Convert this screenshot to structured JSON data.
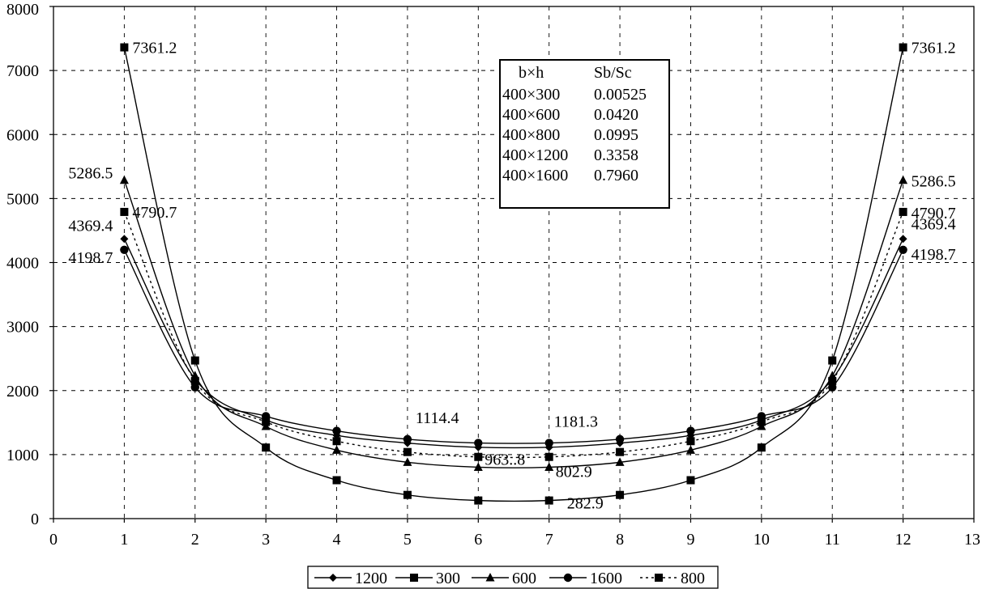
{
  "chart_data": {
    "type": "line",
    "title": "",
    "xlabel": "",
    "ylabel": "",
    "xlim": [
      0,
      13
    ],
    "ylim": [
      0,
      8000
    ],
    "x_ticks": [
      "0",
      "1",
      "2",
      "3",
      "4",
      "5",
      "6",
      "7",
      "8",
      "9",
      "10",
      "11",
      "12",
      "13"
    ],
    "y_ticks": [
      "0",
      "1000",
      "2000",
      "3000",
      "4000",
      "5000",
      "6000",
      "7000",
      "8000"
    ],
    "grid": "dashed vertical and horizontal",
    "legend_position": "bottom",
    "x": [
      1,
      2,
      3,
      4,
      5,
      6,
      7,
      8,
      9,
      10,
      11,
      12
    ],
    "series": [
      {
        "name": "1200",
        "marker": "diamond",
        "dash": "solid",
        "values": [
          4369.4,
          2180,
          1540,
          1300,
          1180,
          1114.4,
          1114.4,
          1180,
          1300,
          1540,
          2180,
          4369.4
        ]
      },
      {
        "name": "300",
        "marker": "square",
        "dash": "solid",
        "values": [
          7361.2,
          2470,
          1110,
          600,
          370,
          282.9,
          282.9,
          370,
          600,
          1110,
          2470,
          7361.2
        ]
      },
      {
        "name": "600",
        "marker": "triangle",
        "dash": "solid",
        "values": [
          5286.5,
          2230,
          1440,
          1070,
          880,
          802.9,
          802.9,
          880,
          1070,
          1440,
          2230,
          5286.5
        ]
      },
      {
        "name": "1600",
        "marker": "circle",
        "dash": "solid",
        "values": [
          4198.7,
          2050,
          1600,
          1370,
          1240,
          1181.3,
          1181.3,
          1240,
          1370,
          1600,
          2050,
          4198.7
        ]
      },
      {
        "name": "800",
        "marker": "square",
        "dash": "dotted",
        "values": [
          4790.7,
          2150,
          1510,
          1210,
          1040,
          963.8,
          963.8,
          1040,
          1210,
          1510,
          2150,
          4790.7
        ]
      }
    ],
    "annotations": [
      {
        "text": "7361.2",
        "x": 1,
        "y": 7361.2,
        "anchor": "start"
      },
      {
        "text": "7361.2",
        "x": 12,
        "y": 7361.2,
        "anchor": "start"
      },
      {
        "text": "5286.5",
        "x": 1,
        "y": 5286.5,
        "anchor": "end"
      },
      {
        "text": "5286.5",
        "x": 12,
        "y": 5286.5,
        "anchor": "start"
      },
      {
        "text": "4790.7",
        "x": 1,
        "y": 4790.7,
        "anchor": "start"
      },
      {
        "text": "4790.7",
        "x": 12,
        "y": 4790.7,
        "anchor": "start"
      },
      {
        "text": "4369.4",
        "x": 1,
        "y": 4369.4,
        "anchor": "end"
      },
      {
        "text": "4369.4",
        "x": 12,
        "y": 4369.4,
        "anchor": "start"
      },
      {
        "text": "4198.7",
        "x": 1,
        "y": 4198.7,
        "anchor": "end"
      },
      {
        "text": "4198.7",
        "x": 12,
        "y": 4198.7,
        "anchor": "start"
      },
      {
        "text": "1114.4",
        "x": 5,
        "y": 1114.4,
        "anchor": "start"
      },
      {
        "text": "1181.3",
        "x": 7,
        "y": 1181.3,
        "anchor": "start"
      },
      {
        "text": "963..8",
        "x": 6,
        "y": 963.8,
        "anchor": "start"
      },
      {
        "text": "802.9",
        "x": 7,
        "y": 802.9,
        "anchor": "start"
      },
      {
        "text": "282.9",
        "x": 7,
        "y": 282.9,
        "anchor": "start"
      }
    ],
    "info_box": {
      "headers": [
        "b×h",
        "Sb/Sc"
      ],
      "rows": [
        [
          "400×300",
          "0.00525"
        ],
        [
          "400×600",
          "0.0420"
        ],
        [
          "400×800",
          "0.0995"
        ],
        [
          "400×1200",
          "0.3358"
        ],
        [
          "400×1600",
          "0.7960"
        ]
      ]
    }
  }
}
